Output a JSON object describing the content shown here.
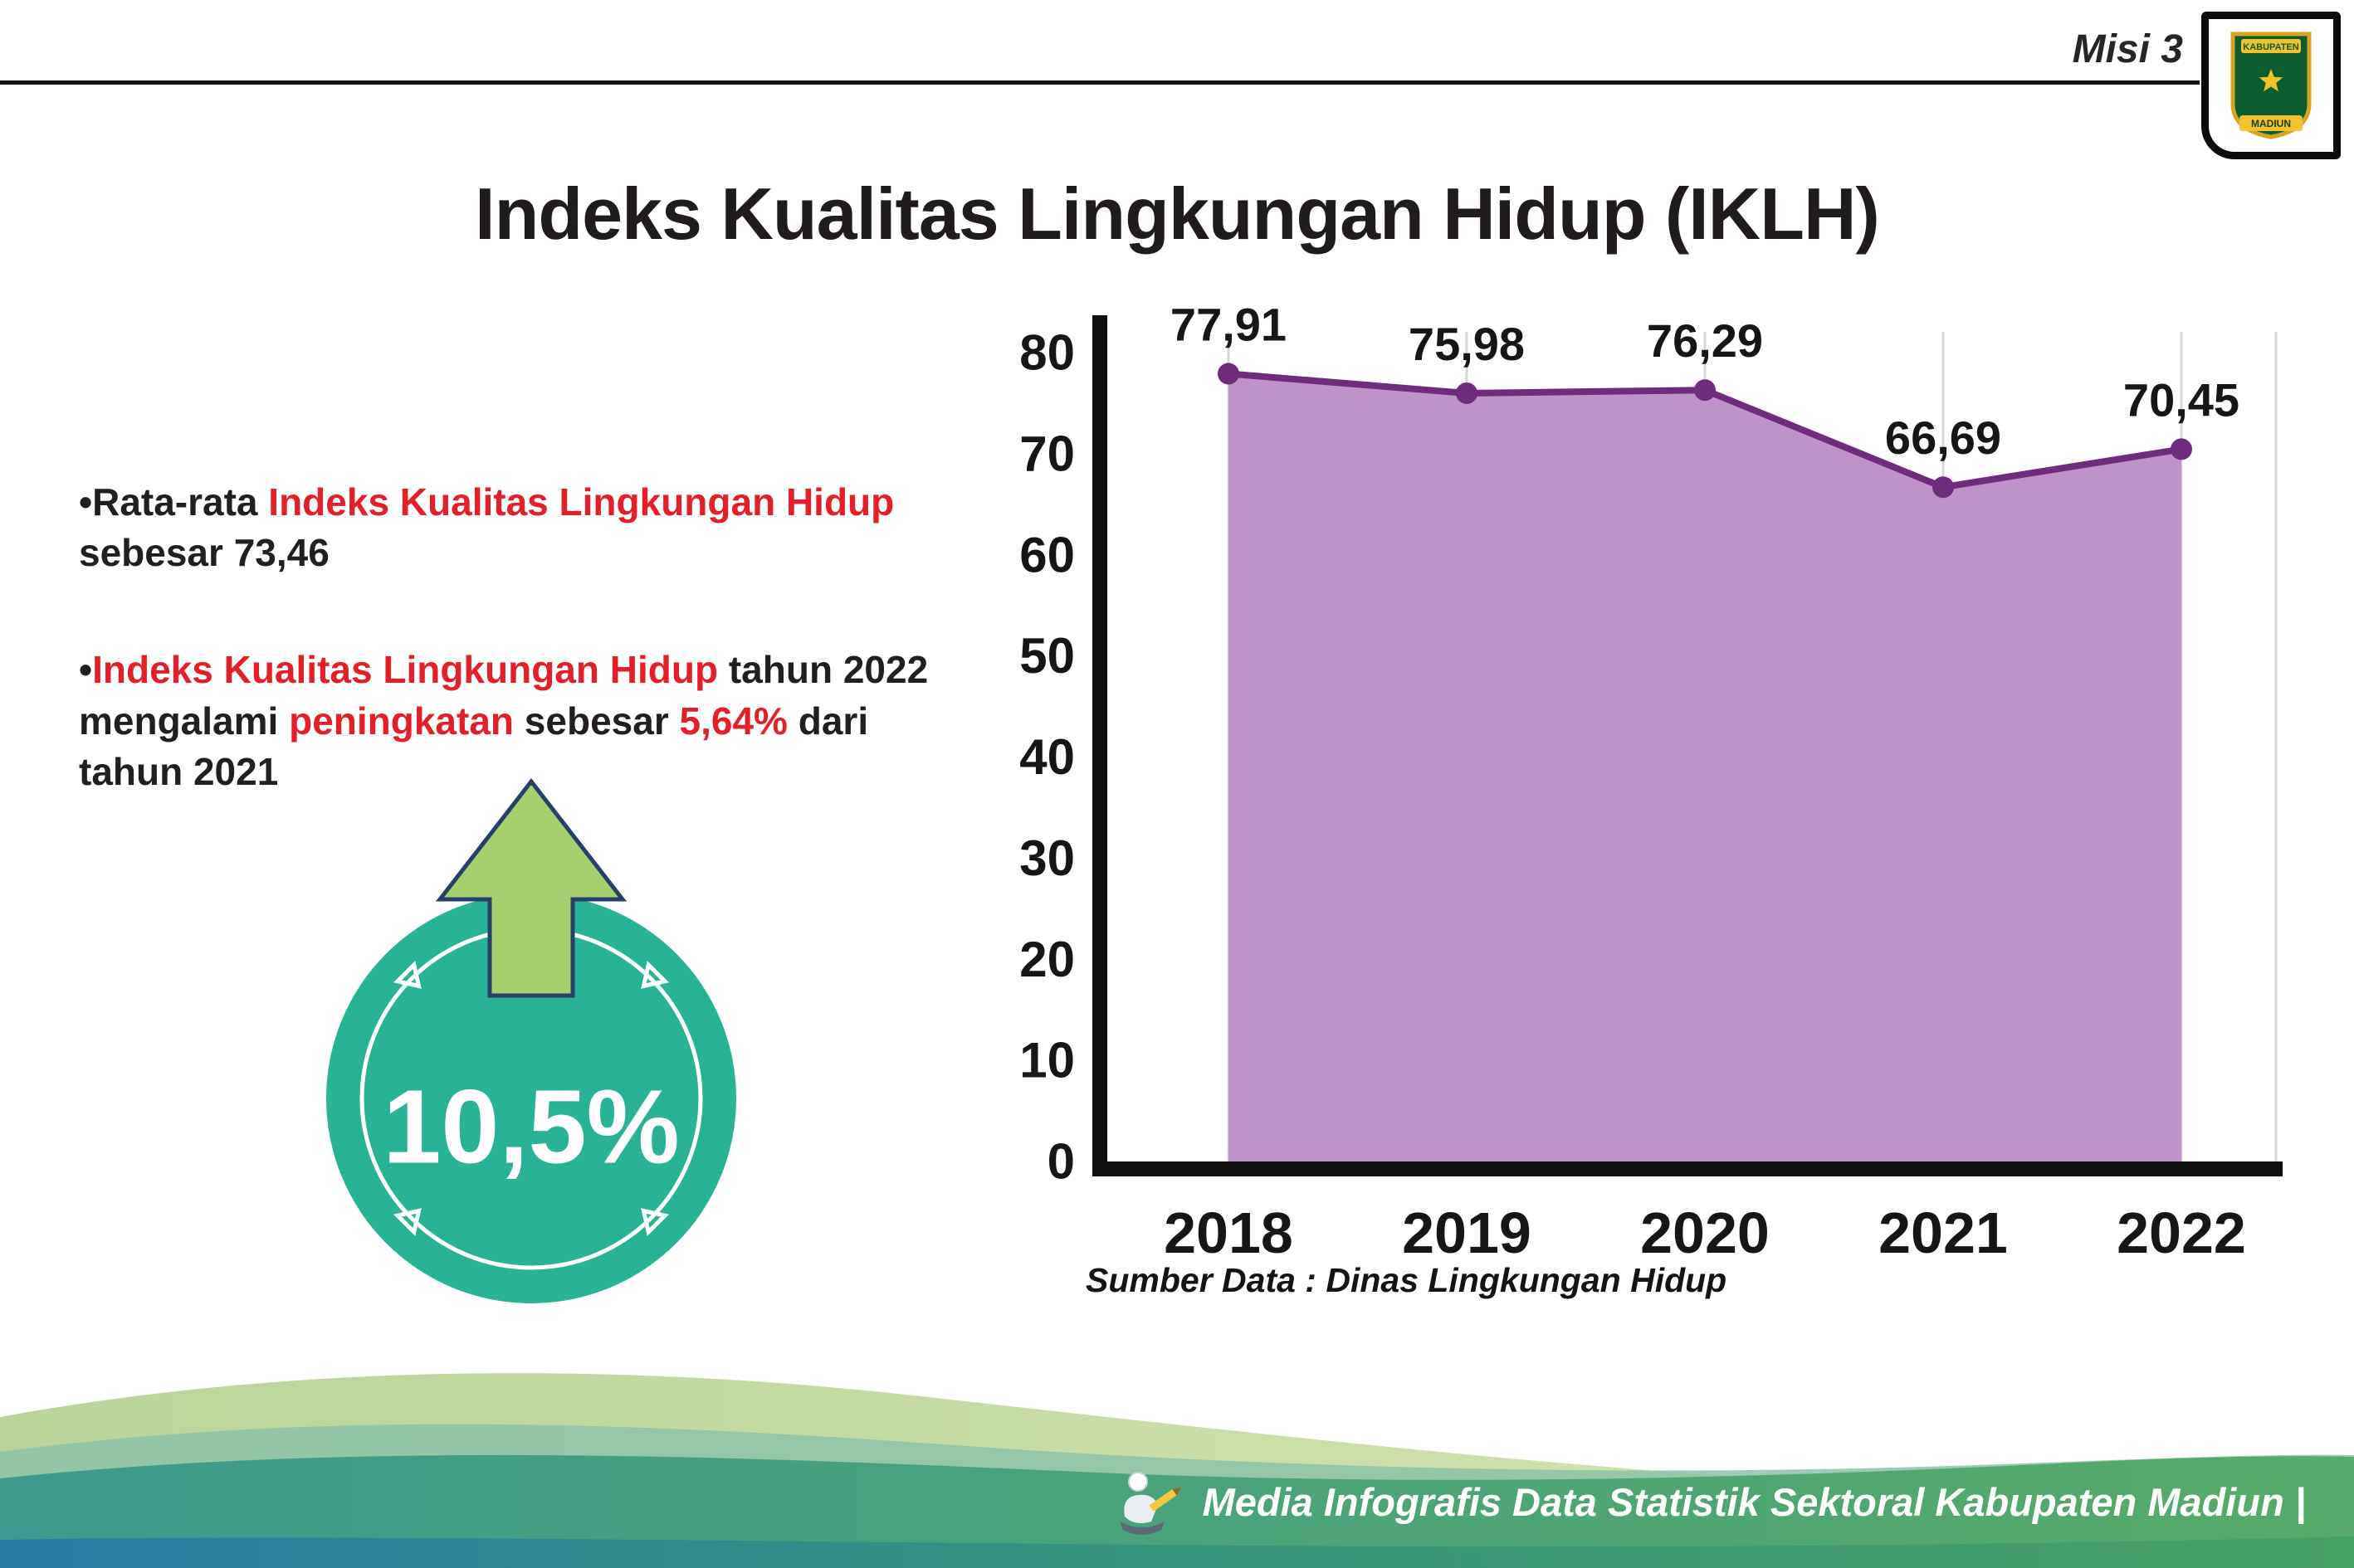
{
  "header": {
    "misi_label": "Misi 3",
    "title": "Indeks Kualitas Lingkungan Hidup (IKLH)",
    "logo": {
      "top": "KABUPATEN",
      "bottom": "MADIUN"
    }
  },
  "bullets": [
    {
      "segments": [
        {
          "text": "•Rata-rata ",
          "color": "dark"
        },
        {
          "text": "Indeks Kualitas Lingkungan Hidup",
          "color": "red"
        },
        {
          "text": " sebesar 73,46",
          "color": "dark"
        }
      ]
    },
    {
      "segments": [
        {
          "text": "•",
          "color": "dark"
        },
        {
          "text": "Indeks Kualitas Lingkungan Hidup",
          "color": "red"
        },
        {
          "text": " tahun 2022 mengalami ",
          "color": "dark"
        },
        {
          "text": "peningkatan",
          "color": "red"
        },
        {
          "text": " sebesar ",
          "color": "dark"
        },
        {
          "text": "5,64%",
          "color": "red"
        },
        {
          "text": " dari tahun 2021",
          "color": "dark"
        }
      ]
    }
  ],
  "badge": {
    "value": "10,5%"
  },
  "chart_data": {
    "type": "area",
    "title": "Indeks Kualitas Lingkungan Hidup (IKLH)",
    "categories": [
      "2018",
      "2019",
      "2020",
      "2021",
      "2022"
    ],
    "values": [
      77.91,
      75.98,
      76.29,
      66.69,
      70.45
    ],
    "value_labels": [
      "77,91",
      "75,98",
      "76,29",
      "66,69",
      "70,45"
    ],
    "ylim": [
      0,
      80
    ],
    "yticks": [
      0,
      10,
      20,
      30,
      40,
      50,
      60,
      70,
      80
    ],
    "grid": "vertical",
    "legend": "none",
    "fill_color": "#bf93c9",
    "line_color": "#6f2c7d",
    "source": "Sumber Data : Dinas Lingkungan Hidup"
  },
  "footer": {
    "credit": "Media Infografis Data Statistik Sektoral Kabupaten Madiun |"
  },
  "colors": {
    "accent_red": "#e32028",
    "area_fill": "#bf93c9",
    "area_line": "#6f2c7d",
    "badge_teal": "#29b296",
    "arrow_green": "#a8cf6f",
    "footer_teal": "#3d9a8c",
    "footer_green": "#57aa69",
    "footer_blue": "#2a7ba6",
    "footer_sage": "#c9dda1"
  }
}
